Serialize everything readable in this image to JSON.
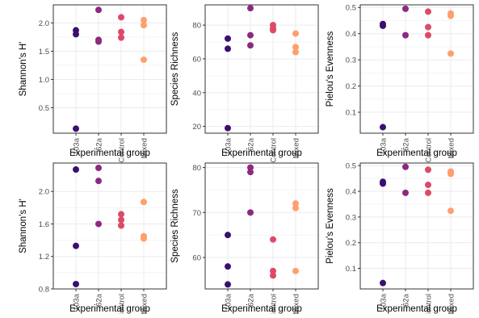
{
  "palette": {
    "103a": "#3b0f70",
    "62a": "#8c2981",
    "Control": "#de4968",
    "Mixed": "#fe9f6d",
    "panel_border": "#333333",
    "grid": "#ebebeb",
    "tick_text": "#4d4d4d",
    "label_text": "#000000"
  },
  "chart_data": [
    {
      "type": "scatter",
      "categories": [
        "103a",
        "62a",
        "Control",
        "Mixed"
      ],
      "xlabel": "Experimental group",
      "ylabel": "Shannon's H'",
      "ylim": [
        0.05,
        2.32
      ],
      "yticks": [
        0.5,
        1.0,
        1.5,
        2.0
      ],
      "ytick_labels": [
        "0.5",
        "1.0",
        "1.5",
        "2.0"
      ],
      "grid": true,
      "points": {
        "103a": [
          1.87,
          1.8,
          0.13
        ],
        "62a": [
          2.23,
          1.7,
          1.67
        ],
        "Control": [
          2.1,
          1.84,
          1.74
        ],
        "Mixed": [
          2.05,
          1.96,
          1.35
        ]
      }
    },
    {
      "type": "scatter",
      "categories": [
        "103a",
        "62a",
        "Control",
        "Mixed"
      ],
      "xlabel": "Experimental group",
      "ylabel": "Species Richness",
      "ylim": [
        16,
        92
      ],
      "yticks": [
        20,
        40,
        60,
        80
      ],
      "ytick_labels": [
        "20",
        "40",
        "60",
        "80"
      ],
      "grid": true,
      "points": {
        "103a": [
          72,
          66,
          19
        ],
        "62a": [
          90,
          74,
          68
        ],
        "Control": [
          80,
          78,
          77
        ],
        "Mixed": [
          75,
          67,
          64
        ]
      }
    },
    {
      "type": "scatter",
      "categories": [
        "103a",
        "62a",
        "Control",
        "Mixed"
      ],
      "xlabel": "Experimental group",
      "ylabel": "Pielou's Evenness",
      "ylim": [
        0.02,
        0.51
      ],
      "yticks": [
        0.1,
        0.2,
        0.3,
        0.4,
        0.5
      ],
      "ytick_labels": [
        "0.1",
        "0.2",
        "0.3",
        "0.4",
        "0.5"
      ],
      "grid": true,
      "points": {
        "103a": [
          0.437,
          0.43,
          0.043
        ],
        "62a": [
          0.495,
          0.394
        ],
        "Control": [
          0.484,
          0.425,
          0.394
        ],
        "Mixed": [
          0.477,
          0.468,
          0.324
        ]
      }
    },
    {
      "type": "scatter",
      "categories": [
        "103a",
        "62a",
        "Control",
        "Mixed"
      ],
      "xlabel": "Experimental group",
      "ylabel": "Shannon's H'",
      "ylim": [
        0.8,
        2.35
      ],
      "yticks": [
        0.8,
        1.2,
        1.6,
        2.0
      ],
      "ytick_labels": [
        "0.8",
        "1.2",
        "1.6",
        "2.0"
      ],
      "grid": true,
      "points": {
        "103a": [
          2.27,
          1.33,
          0.86
        ],
        "62a": [
          2.29,
          2.13,
          1.6
        ],
        "Control": [
          1.72,
          1.65,
          1.58
        ],
        "Mixed": [
          1.87,
          1.45,
          1.42
        ]
      }
    },
    {
      "type": "scatter",
      "categories": [
        "103a",
        "62a",
        "Control",
        "Mixed"
      ],
      "xlabel": "Experimental group",
      "ylabel": "Species Richness",
      "ylim": [
        53,
        81
      ],
      "yticks": [
        60,
        70,
        80
      ],
      "ytick_labels": [
        "60",
        "70",
        "80"
      ],
      "grid": true,
      "points": {
        "103a": [
          65,
          58,
          54
        ],
        "62a": [
          80,
          79,
          70
        ],
        "Control": [
          64,
          57,
          56
        ],
        "Mixed": [
          72,
          71,
          57
        ]
      }
    },
    {
      "type": "scatter",
      "categories": [
        "103a",
        "62a",
        "Control",
        "Mixed"
      ],
      "xlabel": "Experimental group",
      "ylabel": "Pielou's Evenness",
      "ylim": [
        0.02,
        0.51
      ],
      "yticks": [
        0.1,
        0.2,
        0.3,
        0.4,
        0.5
      ],
      "ytick_labels": [
        "0.1",
        "0.2",
        "0.3",
        "0.4",
        "0.5"
      ],
      "grid": true,
      "points": {
        "103a": [
          0.437,
          0.43,
          0.043
        ],
        "62a": [
          0.495,
          0.394
        ],
        "Control": [
          0.484,
          0.425,
          0.394
        ],
        "Mixed": [
          0.477,
          0.468,
          0.324
        ]
      }
    }
  ]
}
